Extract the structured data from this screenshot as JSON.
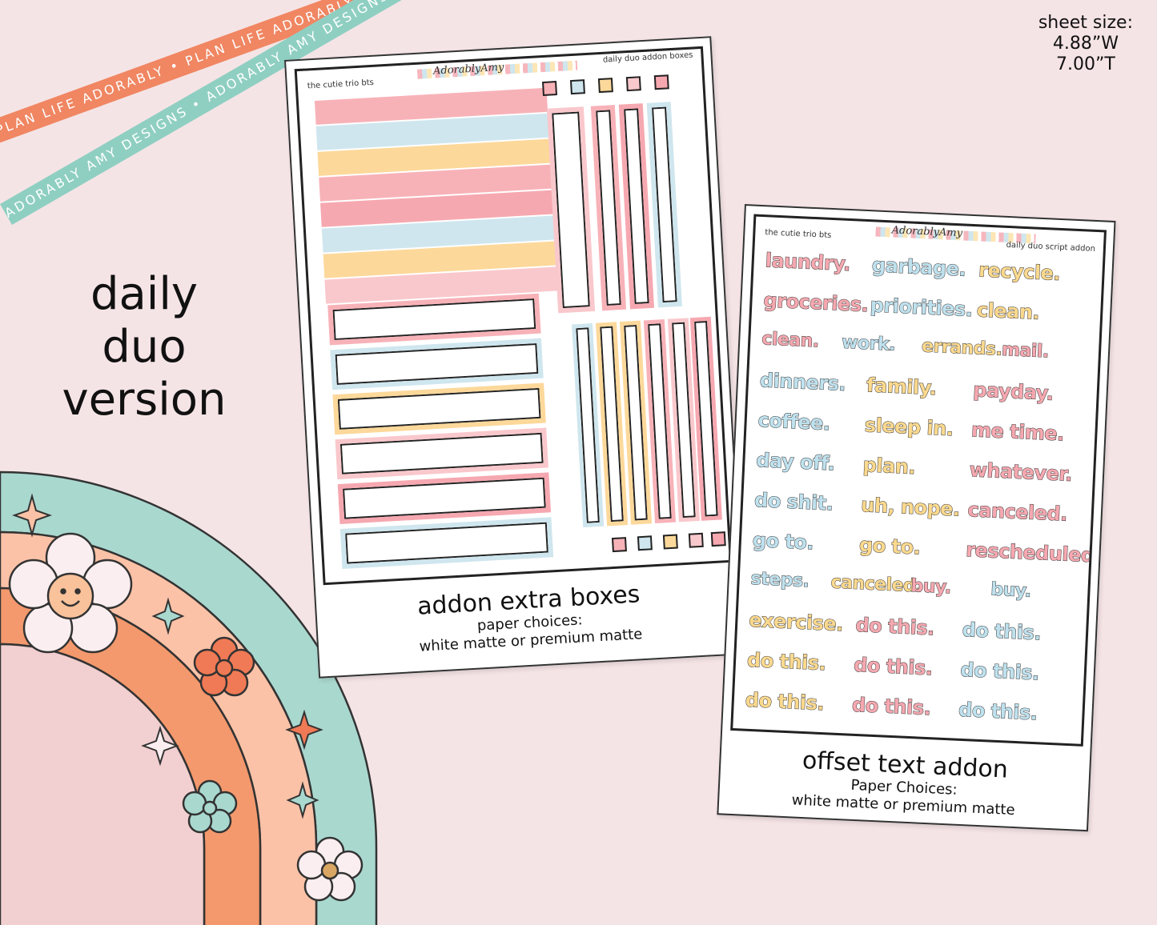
{
  "ribbons": {
    "orange": "PLAN LIFE ADORABLY • PLAN LIFE ADORABLY • PLAN LIFE ADORABLY • PLAN LIFE ADORABLY",
    "teal": "ADORABLY AMY DESIGNS • ADORABLY AMY DESIGNS • ADORABLY AMY DESIGNS • ADORABLY AMY DESIGNS"
  },
  "sheet_size": {
    "label": "sheet size:",
    "width": "4.88”W",
    "height": "7.00”T"
  },
  "title": {
    "line1": "daily",
    "line2": "duo",
    "line3": "version"
  },
  "left_sheet": {
    "header_left": "the cutie trio bts",
    "header_brand": "AdorablyAmy",
    "header_right": "daily duo addon boxes",
    "caption_title": "addon extra boxes",
    "caption_sub1": "paper choices:",
    "caption_sub2": "white matte or premium matte"
  },
  "right_sheet": {
    "header_left": "the cutie trio bts",
    "header_brand": "AdorablyAmy",
    "header_right": "daily duo script addon",
    "caption_title": "offset text addon",
    "caption_sub1": "Paper Choices:",
    "caption_sub2": "white matte or premium matte",
    "words": [
      [
        "laundry.",
        "garbage.",
        "recycle."
      ],
      [
        "groceries.",
        "priorities.",
        "clean."
      ],
      [
        "clean.",
        "work.",
        "errands.",
        "mail."
      ],
      [
        "dinners.",
        "family.",
        "payday."
      ],
      [
        "coffee.",
        "sleep in.",
        "me time."
      ],
      [
        "day off.",
        "plan.",
        "whatever."
      ],
      [
        "do shit.",
        "uh, nope.",
        "canceled."
      ],
      [
        "go to.",
        "go to.",
        "rescheduled."
      ],
      [
        "steps.",
        "canceled.",
        "buy.",
        "buy."
      ],
      [
        "exercise.",
        "do this.",
        "do this."
      ],
      [
        "do this.",
        "do this.",
        "do this."
      ],
      [
        "do this.",
        "do this.",
        "do this."
      ]
    ]
  },
  "colors": {
    "pink": "#f6a8b0",
    "blue": "#bfe1ee",
    "yellow": "#fbd98e",
    "orange": "#f08662",
    "teal": "#8fcfc2"
  }
}
